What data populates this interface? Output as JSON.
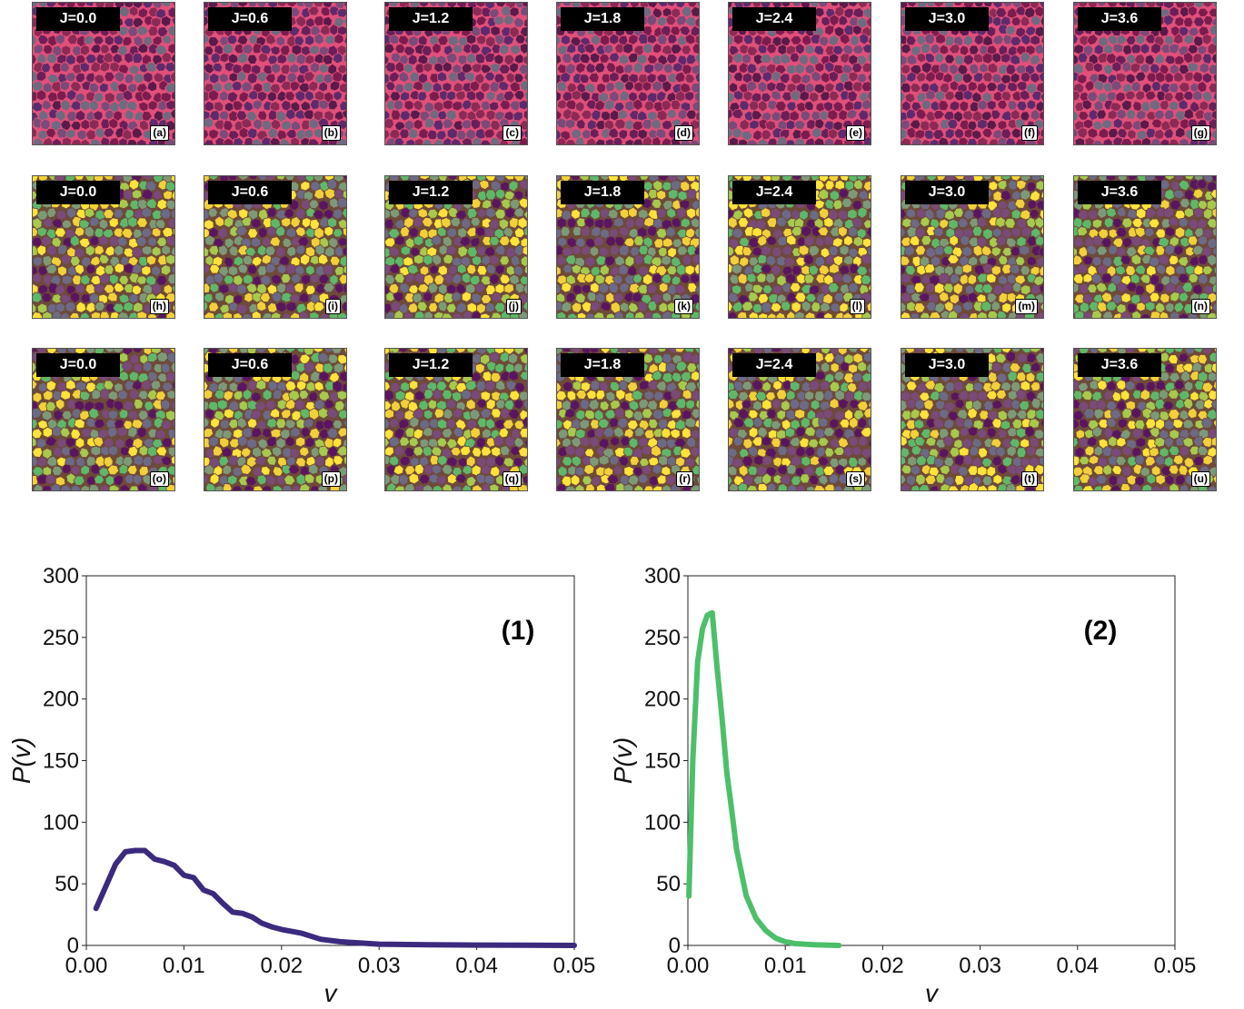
{
  "panels": {
    "rows": [
      [
        {
          "j": "J=0.0",
          "tag": "(a)"
        },
        {
          "j": "J=0.6",
          "tag": "(b)"
        },
        {
          "j": "J=1.2",
          "tag": "(c)"
        },
        {
          "j": "J=1.8",
          "tag": "(d)"
        },
        {
          "j": "J=2.4",
          "tag": "(e)"
        },
        {
          "j": "J=3.0",
          "tag": "(f)"
        },
        {
          "j": "J=3.6",
          "tag": "(g)"
        }
      ],
      [
        {
          "j": "J=0.0",
          "tag": "(h)"
        },
        {
          "j": "J=0.6",
          "tag": "(i)"
        },
        {
          "j": "J=1.2",
          "tag": "(j)"
        },
        {
          "j": "J=1.8",
          "tag": "(k)"
        },
        {
          "j": "J=2.4",
          "tag": "(l)"
        },
        {
          "j": "J=3.0",
          "tag": "(m)"
        },
        {
          "j": "J=3.6",
          "tag": "(n)"
        }
      ],
      [
        {
          "j": "J=0.0",
          "tag": "(o)"
        },
        {
          "j": "J=0.6",
          "tag": "(p)"
        },
        {
          "j": "J=1.2",
          "tag": "(q)"
        },
        {
          "j": "J=1.8",
          "tag": "(r)"
        },
        {
          "j": "J=2.4",
          "tag": "(s)"
        },
        {
          "j": "J=3.0",
          "tag": "(t)"
        },
        {
          "j": "J=3.6",
          "tag": "(u)"
        }
      ]
    ],
    "row_palettes": [
      [
        "#7c1c4e",
        "#6a1f58",
        "#8a2a55",
        "#5e2a6b",
        "#7a4a78",
        "#6e6a80",
        "#5a1a4a"
      ],
      [
        "#5a1560",
        "#6c6a86",
        "#7d9a78",
        "#5fb86a",
        "#a7c94d",
        "#f2d03a",
        "#ffe23a",
        "#7a4a7a"
      ],
      [
        "#5a1560",
        "#6c6a86",
        "#7d9a78",
        "#5fb86a",
        "#a7c94d",
        "#f2d03a",
        "#ffe23a",
        "#7a4a7a"
      ]
    ],
    "row_edge_colors": [
      "#e0507a",
      "#6e4a3a",
      "#6e4a3a"
    ]
  },
  "chart_data": [
    {
      "type": "line",
      "panel_label": "(1)",
      "xlabel": "v",
      "ylabel": "P(v)",
      "xlim": [
        0,
        0.05
      ],
      "ylim": [
        0,
        300
      ],
      "xticks": [
        "0.00",
        "0.01",
        "0.02",
        "0.03",
        "0.04",
        "0.05"
      ],
      "yticks": [
        "0",
        "50",
        "100",
        "150",
        "200",
        "250",
        "300"
      ],
      "color": "#3b2a7e",
      "series": [
        {
          "x": [
            0.001,
            0.002,
            0.003,
            0.004,
            0.005,
            0.006,
            0.007,
            0.008,
            0.009,
            0.01,
            0.011,
            0.012,
            0.013,
            0.014,
            0.015,
            0.016,
            0.017,
            0.018,
            0.019,
            0.02,
            0.022,
            0.024,
            0.026,
            0.028,
            0.03,
            0.035,
            0.04,
            0.045,
            0.05
          ],
          "y": [
            30,
            48,
            66,
            76,
            77,
            77,
            70,
            68,
            65,
            57,
            55,
            45,
            42,
            34,
            27,
            26,
            23,
            18,
            15,
            13,
            10,
            5,
            3,
            2,
            1,
            0.5,
            0.3,
            0.2,
            0
          ]
        }
      ]
    },
    {
      "type": "line",
      "panel_label": "(2)",
      "xlabel": "v",
      "ylabel": "P(v)",
      "xlim": [
        0,
        0.05
      ],
      "ylim": [
        0,
        300
      ],
      "xticks": [
        "0.00",
        "0.01",
        "0.02",
        "0.03",
        "0.04",
        "0.05"
      ],
      "yticks": [
        "0",
        "50",
        "100",
        "150",
        "200",
        "250",
        "300"
      ],
      "color": "#4cbf6a",
      "series": [
        {
          "x": [
            0.0001,
            0.0005,
            0.001,
            0.0015,
            0.002,
            0.0025,
            0.003,
            0.0035,
            0.004,
            0.0045,
            0.005,
            0.006,
            0.007,
            0.008,
            0.009,
            0.01,
            0.011,
            0.013,
            0.0155
          ],
          "y": [
            40,
            150,
            230,
            257,
            268,
            270,
            225,
            185,
            140,
            110,
            78,
            40,
            22,
            12,
            6,
            3,
            1.5,
            0.5,
            0
          ]
        }
      ]
    }
  ]
}
